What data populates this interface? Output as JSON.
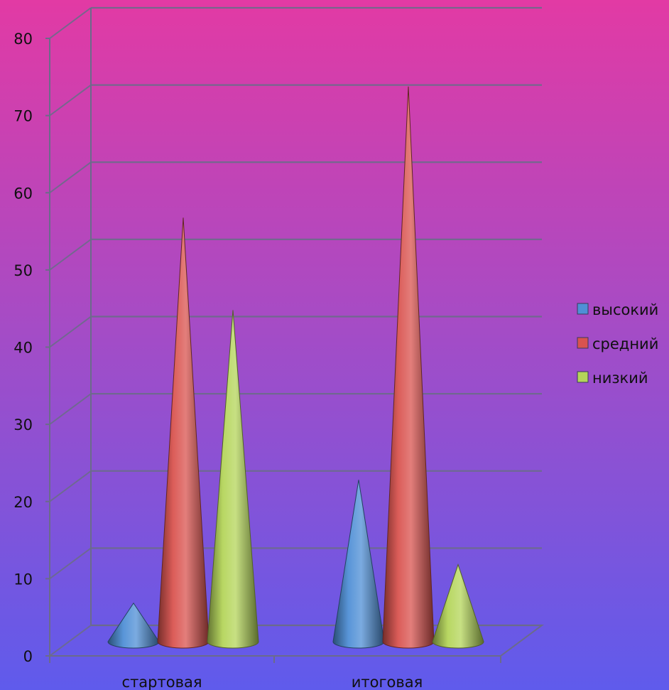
{
  "chart_data": {
    "type": "bar",
    "style": "3d-cone",
    "categories": [
      "стартовая",
      "итоговая"
    ],
    "series": [
      {
        "name": "высокий",
        "values": [
          5,
          21
        ],
        "color": "#4f8fd6"
      },
      {
        "name": "средний",
        "values": [
          55,
          72
        ],
        "color": "#d9534f"
      },
      {
        "name": "низкий",
        "values": [
          43,
          10
        ],
        "color": "#b4d55a"
      }
    ],
    "y_ticks": [
      "0",
      "10",
      "20",
      "30",
      "40",
      "50",
      "60",
      "70",
      "80"
    ],
    "ylim": [
      0,
      80
    ],
    "grid": true,
    "legend_position": "right"
  }
}
